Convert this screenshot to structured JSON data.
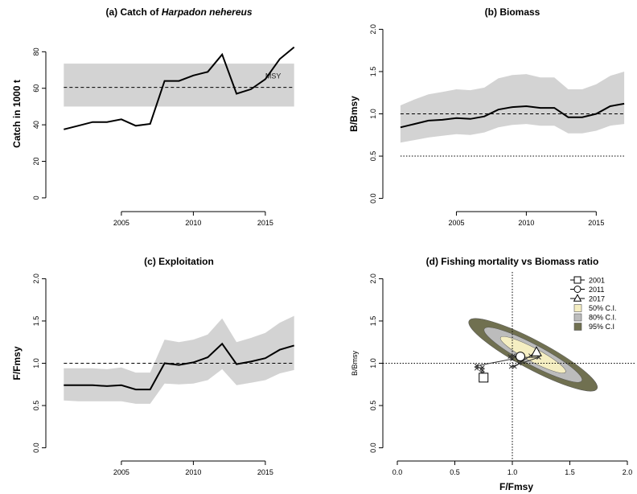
{
  "chart_data": [
    {
      "type": "line",
      "title_prefix": "(a) Catch of ",
      "title_italic": "Harpadon nehereus",
      "ylabel": "Catch in 1000 t",
      "xlim": [
        2000.2,
        2017.8
      ],
      "ylim": [
        -4,
        96
      ],
      "xticks": [
        2005,
        2010,
        2015
      ],
      "yticks": [
        0,
        20,
        40,
        60,
        80
      ],
      "series": [
        {
          "x": [
            2001,
            2002,
            2003,
            2004,
            2005,
            2006,
            2007,
            2008,
            2009,
            2010,
            2011,
            2012,
            2013,
            2014,
            2015,
            2016,
            2017
          ],
          "values": [
            37.5,
            39.5,
            41.5,
            41.5,
            43,
            39.5,
            40.5,
            64,
            64,
            67,
            69,
            78.5,
            57,
            59.5,
            65,
            76,
            82.5
          ]
        }
      ],
      "band": {
        "lower": 50,
        "upper": 73.5
      },
      "hline": {
        "y": 60.5,
        "label": "MSY",
        "label_x": 2015
      }
    },
    {
      "type": "line",
      "title": "(b) Biomass",
      "ylabel": "B/Bmsy",
      "xlim": [
        2000.2,
        2017.8
      ],
      "ylim": [
        -0.08,
        2.08
      ],
      "xticks": [
        2005,
        2010,
        2015
      ],
      "yticks": [
        0.0,
        0.5,
        1.0,
        1.5,
        2.0
      ],
      "series": [
        {
          "x": [
            2001,
            2002,
            2003,
            2004,
            2005,
            2006,
            2007,
            2008,
            2009,
            2010,
            2011,
            2012,
            2013,
            2014,
            2015,
            2016,
            2017
          ],
          "values": [
            0.84,
            0.88,
            0.92,
            0.93,
            0.95,
            0.94,
            0.97,
            1.05,
            1.08,
            1.09,
            1.07,
            1.07,
            0.96,
            0.96,
            1.0,
            1.09,
            1.12
          ],
          "lower": [
            0.66,
            0.69,
            0.72,
            0.74,
            0.76,
            0.75,
            0.78,
            0.84,
            0.87,
            0.88,
            0.86,
            0.86,
            0.77,
            0.77,
            0.8,
            0.86,
            0.88
          ],
          "upper": [
            1.1,
            1.17,
            1.23,
            1.26,
            1.29,
            1.28,
            1.31,
            1.42,
            1.46,
            1.47,
            1.43,
            1.43,
            1.29,
            1.29,
            1.35,
            1.45,
            1.5
          ]
        }
      ],
      "hlines": [
        {
          "y": 1.0,
          "style": "dashed"
        },
        {
          "y": 0.5,
          "style": "dotted"
        }
      ]
    },
    {
      "type": "line",
      "title": "(c) Exploitation",
      "ylabel": "F/Fmsy",
      "xlim": [
        2000.2,
        2017.8
      ],
      "ylim": [
        -0.08,
        2.08
      ],
      "xticks": [
        2005,
        2010,
        2015
      ],
      "yticks": [
        0.0,
        0.5,
        1.0,
        1.5,
        2.0
      ],
      "series": [
        {
          "x": [
            2001,
            2002,
            2003,
            2004,
            2005,
            2006,
            2007,
            2008,
            2009,
            2010,
            2011,
            2012,
            2013,
            2014,
            2015,
            2016,
            2017
          ],
          "values": [
            0.74,
            0.74,
            0.74,
            0.73,
            0.74,
            0.69,
            0.69,
            1.0,
            0.98,
            1.01,
            1.07,
            1.23,
            0.99,
            1.02,
            1.06,
            1.16,
            1.21
          ],
          "lower": [
            0.56,
            0.55,
            0.55,
            0.55,
            0.55,
            0.52,
            0.52,
            0.76,
            0.75,
            0.76,
            0.8,
            0.93,
            0.74,
            0.77,
            0.8,
            0.88,
            0.92
          ],
          "upper": [
            0.94,
            0.94,
            0.94,
            0.93,
            0.95,
            0.89,
            0.89,
            1.28,
            1.25,
            1.28,
            1.34,
            1.53,
            1.25,
            1.3,
            1.36,
            1.48,
            1.56
          ]
        }
      ],
      "hlines": [
        {
          "y": 1.0,
          "style": "dashed"
        }
      ]
    },
    {
      "type": "scatter",
      "title": "(d) Fishing mortality vs Biomass ratio",
      "xlabel": "F/Fmsy",
      "ylabel": "B/Bmsy",
      "xlim": [
        -0.07,
        2.07
      ],
      "ylim": [
        -0.08,
        2.08
      ],
      "xticks": [
        0.0,
        0.5,
        1.0,
        1.5,
        2.0
      ],
      "yticks": [
        0.0,
        0.5,
        1.0,
        1.5,
        2.0
      ],
      "tick_labels": [
        "0.0",
        "0.5",
        "1.0",
        "1.5",
        "2.0"
      ],
      "reference_lines": {
        "x": 1.0,
        "y": 1.0
      },
      "trajectory": {
        "x": [
          0.74,
          0.74,
          0.74,
          0.73,
          0.74,
          0.69,
          0.69,
          1.0,
          0.98,
          1.01,
          1.07,
          1.23,
          0.99,
          1.02,
          1.06,
          1.16,
          1.21
        ],
        "y": [
          0.84,
          0.88,
          0.92,
          0.93,
          0.95,
          0.94,
          0.97,
          1.05,
          1.08,
          1.09,
          1.07,
          1.07,
          0.96,
          0.96,
          1.0,
          1.09,
          1.12
        ]
      },
      "highlighted_points": [
        {
          "label": "2001",
          "shape": "square",
          "x": 0.75,
          "y": 0.83
        },
        {
          "label": "2011",
          "shape": "circle",
          "x": 1.07,
          "y": 1.08
        },
        {
          "label": "2017",
          "shape": "triangle",
          "x": 1.21,
          "y": 1.13
        }
      ],
      "confidence_regions": [
        {
          "label": "95% C.I",
          "color": "#707050",
          "center": [
            1.18,
            1.1
          ],
          "rx": 0.63,
          "ry": 0.17,
          "angle_deg": 28
        },
        {
          "label": "80% C.I.",
          "color": "#bcbcbc",
          "center": [
            1.18,
            1.1
          ],
          "rx": 0.48,
          "ry": 0.12,
          "angle_deg": 28
        },
        {
          "label": "50% C.I.",
          "color": "#f5eec2",
          "center": [
            1.18,
            1.1
          ],
          "rx": 0.32,
          "ry": 0.08,
          "angle_deg": 28
        }
      ],
      "legend": {
        "position": "top-right",
        "entries": [
          {
            "label": "2001",
            "symbol": "square"
          },
          {
            "label": "2011",
            "symbol": "circle"
          },
          {
            "label": "2017",
            "symbol": "triangle"
          },
          {
            "label": "50% C.I.",
            "symbol": "box",
            "color": "#f5eec2"
          },
          {
            "label": "80% C.I.",
            "symbol": "box",
            "color": "#bcbcbc"
          },
          {
            "label": "95% C.I",
            "symbol": "box",
            "color": "#707050"
          }
        ]
      }
    }
  ],
  "colors": {
    "band": "#d3d3d3",
    "line": "#000000",
    "axis": "#000000"
  }
}
